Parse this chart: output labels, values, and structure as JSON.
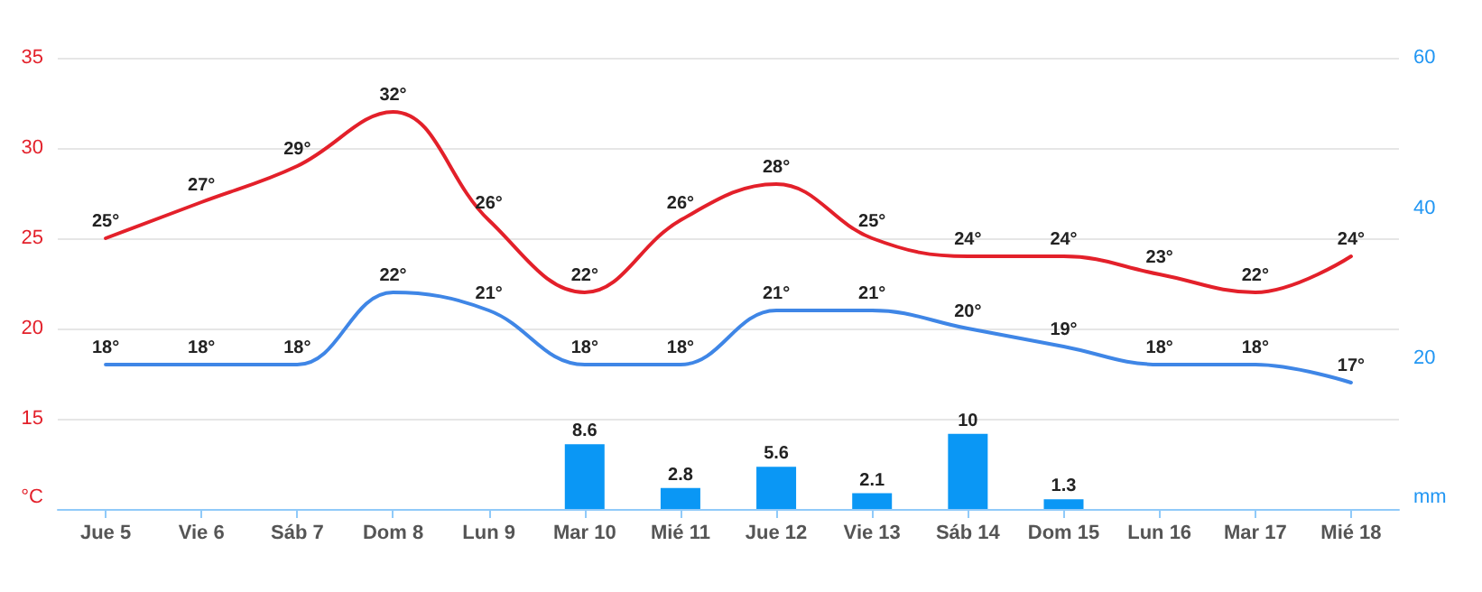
{
  "chart_data": {
    "type": "line",
    "ylabel": "°C",
    "y2label": "mm",
    "categories": [
      "Jue 5",
      "Vie 6",
      "Sáb 7",
      "Dom 8",
      "Lun 9",
      "Mar 10",
      "Mié 11",
      "Jue 12",
      "Vie 13",
      "Sáb 14",
      "Dom 15",
      "Lun 16",
      "Mar 17",
      "Mié 18"
    ],
    "series": [
      {
        "color": "#e3202a",
        "values": [
          25,
          27,
          29,
          32,
          26,
          22,
          26,
          28,
          25,
          24,
          24,
          23,
          22,
          24
        ],
        "value_labels": [
          "25°",
          "27°",
          "29°",
          "32°",
          "26°",
          "22°",
          "26°",
          "28°",
          "25°",
          "24°",
          "24°",
          "23°",
          "22°",
          "24°"
        ]
      },
      {
        "color": "#3f86e6",
        "values": [
          18,
          18,
          18,
          22,
          21,
          18,
          18,
          21,
          21,
          20,
          19,
          18,
          18,
          17
        ],
        "value_labels": [
          "18°",
          "18°",
          "18°",
          "22°",
          "21°",
          "18°",
          "18°",
          "21°",
          "21°",
          "20°",
          "19°",
          "18°",
          "18°",
          "17°"
        ]
      },
      {
        "type": "bar",
        "axis": "y2",
        "color": "#0a97f5",
        "values": [
          null,
          null,
          null,
          null,
          null,
          8.6,
          2.8,
          5.6,
          2.1,
          10,
          1.3,
          null,
          null,
          null
        ],
        "value_labels": [
          null,
          null,
          null,
          null,
          null,
          "8.6",
          "2.8",
          "5.6",
          "2.1",
          "10",
          "1.3",
          null,
          null,
          null
        ]
      }
    ],
    "ylim": [
      10,
      35
    ],
    "yticks": [
      15,
      20,
      25,
      30,
      35
    ],
    "y2lim": [
      0,
      60
    ],
    "y2ticks": [
      20,
      40,
      60
    ],
    "grid": "y",
    "marker": "none",
    "line_style": "solid"
  }
}
